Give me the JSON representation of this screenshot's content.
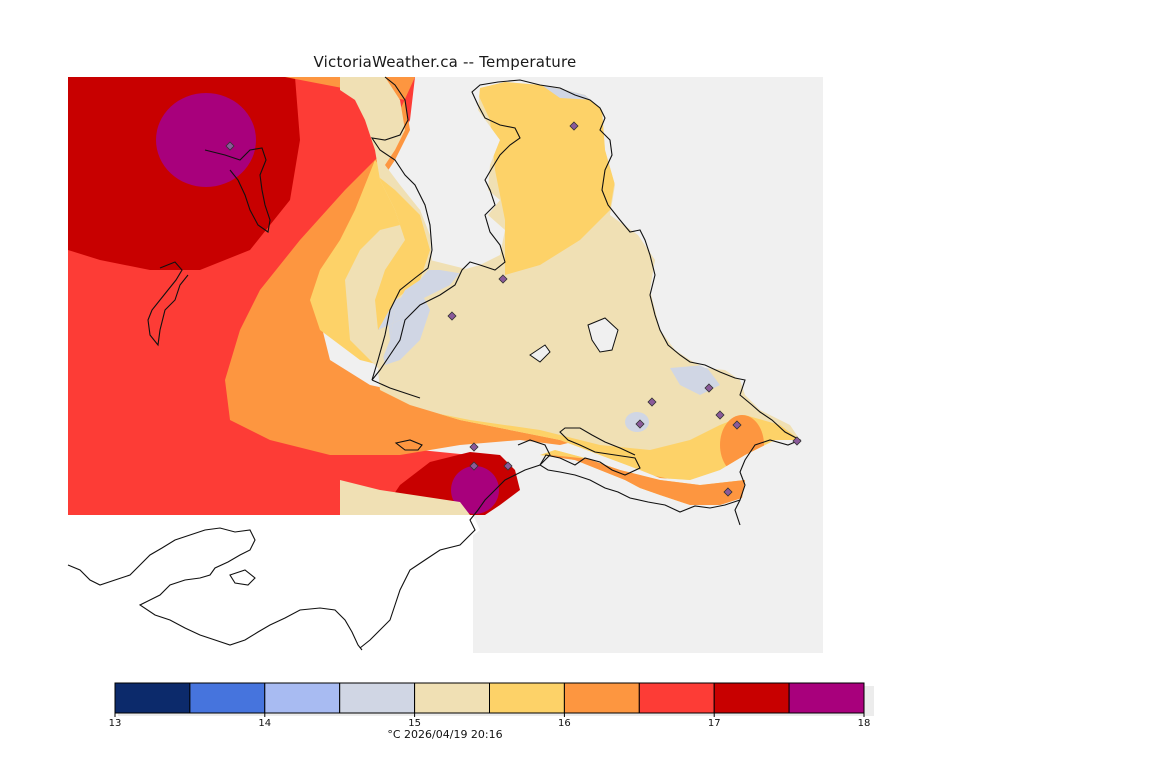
{
  "header": {
    "title": "VictoriaWeather.ca -- Temperature"
  },
  "legend": {
    "colors": [
      "#0c2a6b",
      "#4674dd",
      "#a8bbf2",
      "#d0d6e4",
      "#f0e0b4",
      "#fdd268",
      "#fd9640",
      "#fd3c36",
      "#c80000",
      "#a8007c"
    ],
    "ticks": [
      "13",
      "14",
      "15",
      "16",
      "17",
      "18"
    ],
    "unit": "°C",
    "timestamp": "2026/04/19 20:16",
    "caption": "°C  2026/04/19 20:16"
  },
  "map_colors": {
    "water": "#f0f0f0",
    "outside": "#ffffff",
    "coast": "#111111",
    "station": "#8a5a9a"
  }
}
